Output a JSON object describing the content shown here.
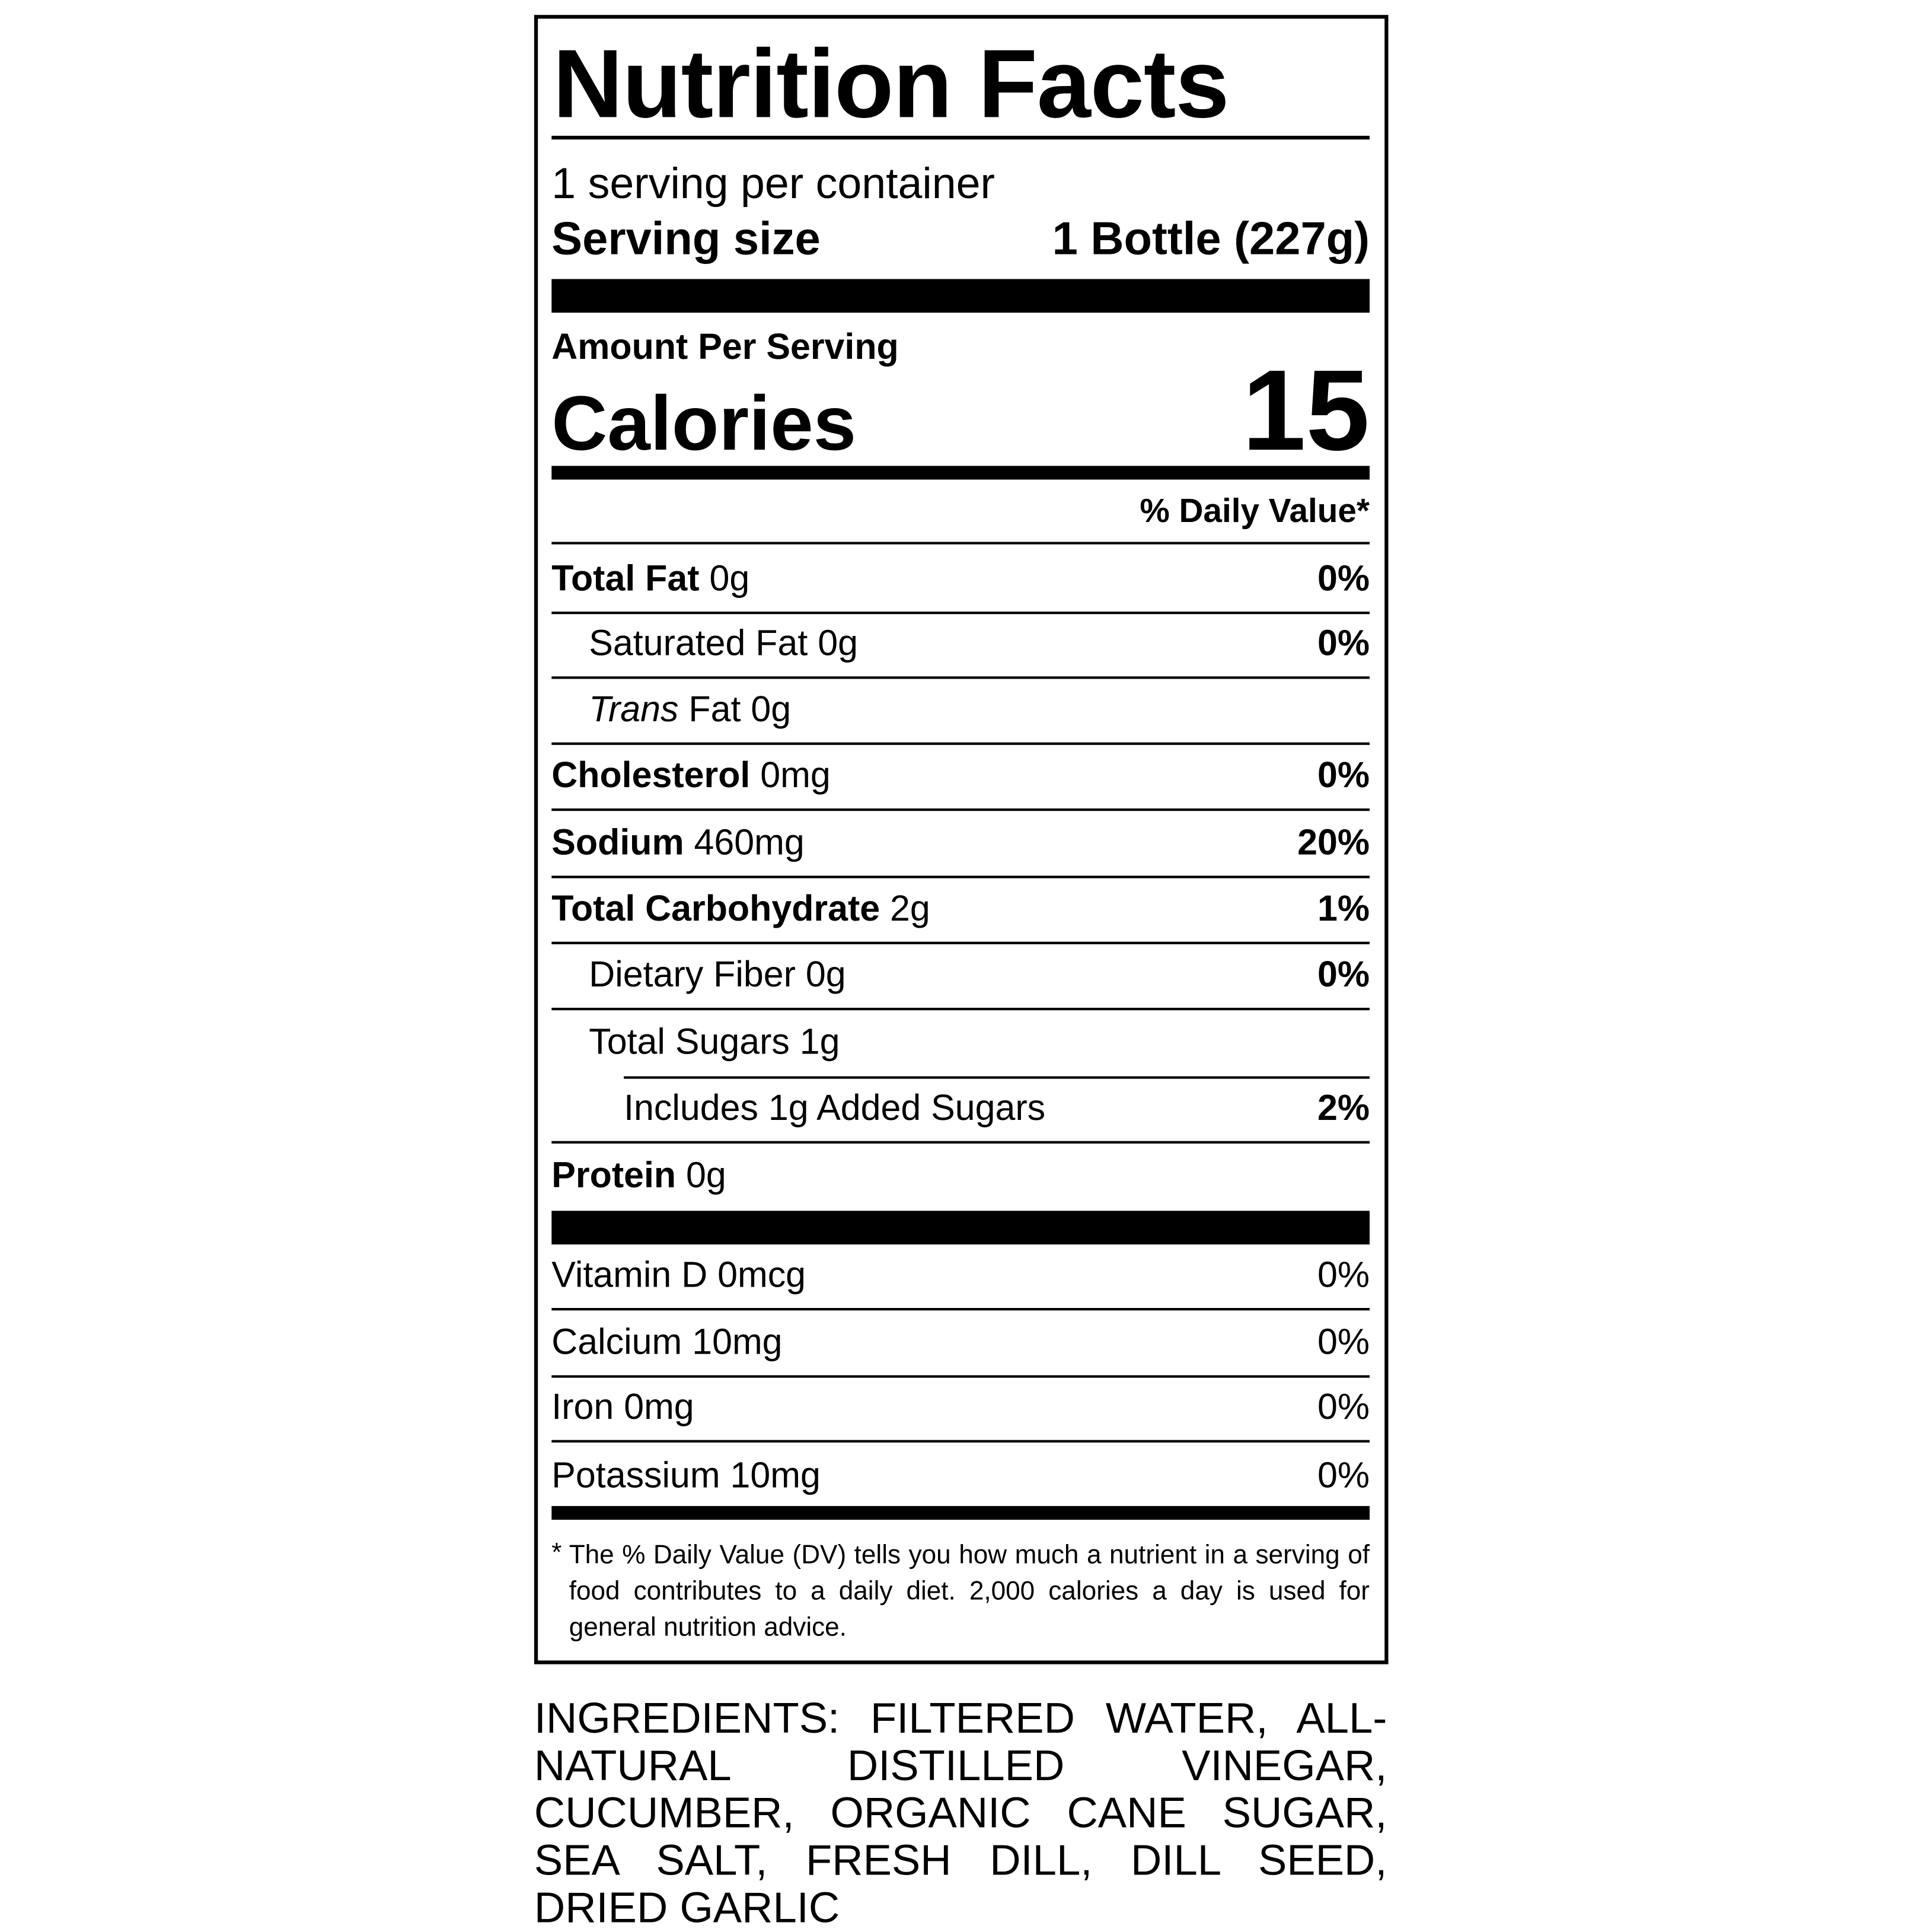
{
  "label": {
    "title": "Nutrition Facts",
    "servings_per_container": "1 serving per container",
    "serving_size_label": "Serving size",
    "serving_size_value": "1 Bottle (227g)",
    "amount_per_serving": "Amount Per Serving",
    "calories_label": "Calories",
    "calories_value": "15",
    "daily_value_header": "% Daily Value*",
    "nutrients": [
      {
        "name": "Total Fat",
        "amount": "0g",
        "dv": "0%"
      },
      {
        "name": "Saturated Fat",
        "amount": "0g",
        "dv": "0%"
      },
      {
        "name_italic": "Trans",
        "name": "Fat",
        "amount": "0g",
        "dv": ""
      },
      {
        "name": "Cholesterol",
        "amount": "0mg",
        "dv": "0%"
      },
      {
        "name": "Sodium",
        "amount": "460mg",
        "dv": "20%"
      },
      {
        "name": "Total Carbohydrate",
        "amount": "2g",
        "dv": "1%"
      },
      {
        "name": "Dietary Fiber",
        "amount": "0g",
        "dv": "0%"
      },
      {
        "name": "Total Sugars",
        "amount": "1g",
        "dv": ""
      },
      {
        "name": "Includes 1g Added Sugars",
        "amount": "",
        "dv": "2%"
      },
      {
        "name": "Protein",
        "amount": "0g",
        "dv": ""
      }
    ],
    "vitamins": [
      {
        "name": "Vitamin D",
        "amount": "0mcg",
        "dv": "0%"
      },
      {
        "name": "Calcium",
        "amount": "10mg",
        "dv": "0%"
      },
      {
        "name": "Iron",
        "amount": "0mg",
        "dv": "0%"
      },
      {
        "name": "Potassium",
        "amount": "10mg",
        "dv": "0%"
      }
    ],
    "footnote_star": "*",
    "footnote": "The % Daily Value (DV) tells you how much a nutrient in a serving of food contributes to a daily diet. 2,000 calories a day is used for general nutrition advice."
  },
  "ingredients": "INGREDIENTS: FILTERED WATER, ALL-NATURAL DISTILLED VINEGAR, CUCUMBER, ORGANIC CANE SUGAR, SEA SALT, FRESH DILL, DILL SEED, DRIED GARLIC"
}
